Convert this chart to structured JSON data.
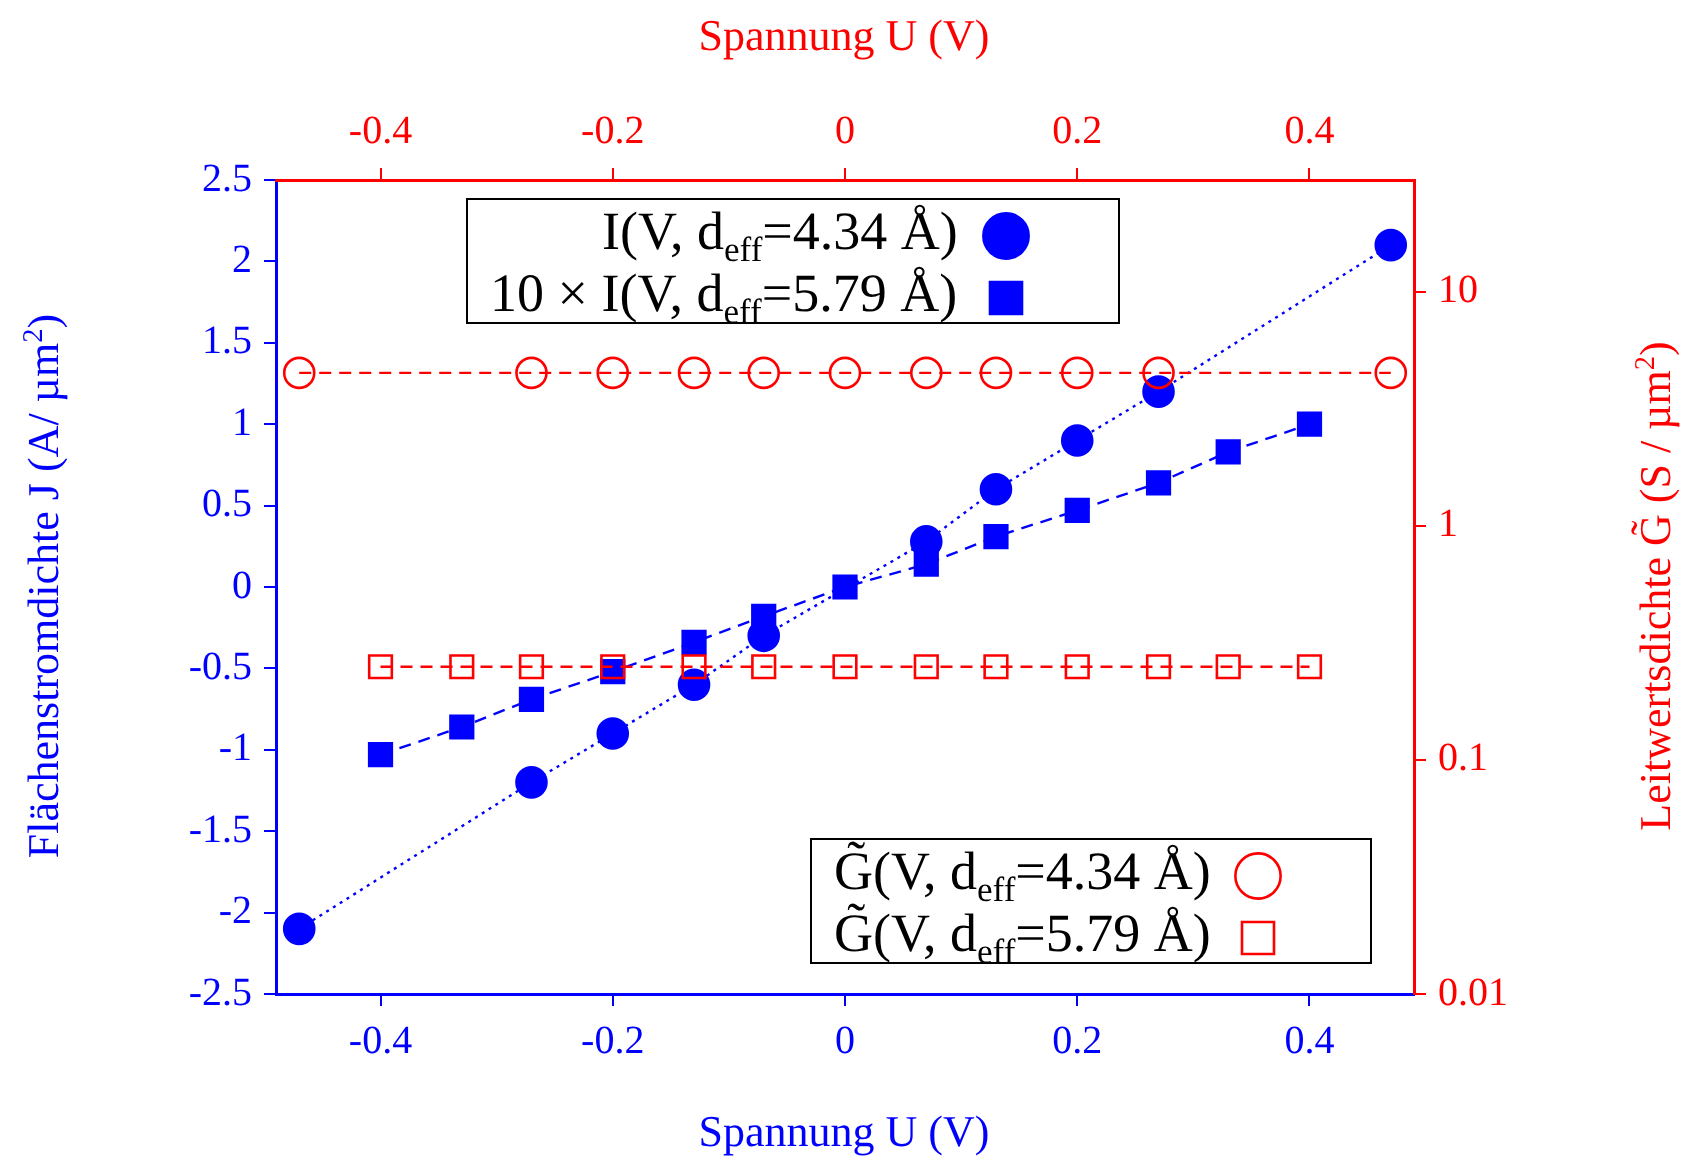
{
  "chart_data": {
    "type": "line",
    "xlabel": "Spannung U (V)",
    "x2label": "Spannung U (V)",
    "ylabel": "Flächenstromdichte J (A/ µm$^{2}$)",
    "y2label": "Leitwertsdichte G̃ (S / µm$^{2}$)",
    "xlim": [
      -0.49,
      0.49
    ],
    "xticks": [
      -0.4,
      -0.2,
      0,
      0.2,
      0.4
    ],
    "x2lim": [
      -0.49,
      0.49
    ],
    "x2ticks": [
      -0.4,
      -0.2,
      0,
      0.2,
      0.4
    ],
    "ylim": [
      -2.5,
      2.5
    ],
    "yticks": [
      -2.5,
      -2,
      -1.5,
      -1,
      -0.5,
      0,
      0.5,
      1,
      1.5,
      2,
      2.5
    ],
    "y2lim": [
      0.01,
      30
    ],
    "y2ticks": [
      0.01,
      0.1,
      1,
      10
    ],
    "log": "y2",
    "legend": "top left",
    "series": [
      {
        "name": "I(V, d$_{eff}$=4.34 Å)",
        "color": "#0000ff",
        "marker": "circle",
        "line_style": "dotted",
        "x": [
          -0.47,
          -0.27,
          -0.2,
          -0.13,
          -0.07,
          0.07,
          0.13,
          0.2,
          0.27,
          0.47
        ],
        "values": [
          -2.1,
          -1.2,
          -0.9,
          -0.6,
          -0.3,
          0.28,
          0.6,
          0.9,
          1.2,
          2.1
        ]
      },
      {
        "name": "10 × I(V, d$_{eff}$=5.79 Å)",
        "color": "#0000ff",
        "marker": "square",
        "line_style": "dashed",
        "x": [
          -0.4,
          -0.33,
          -0.27,
          -0.2,
          -0.13,
          -0.07,
          0,
          0.07,
          0.13,
          0.2,
          0.27,
          0.33,
          0.4
        ],
        "values": [
          -1.03,
          -0.86,
          -0.69,
          -0.52,
          -0.34,
          -0.18,
          0,
          0.14,
          0.31,
          0.47,
          0.64,
          0.83,
          1.0
        ]
      },
      {
        "name": "G̃(V, d$_{eff}$=4.34 Å)",
        "color": "#ff0000",
        "marker": "circle",
        "line_style": "dashed",
        "axis": "y2",
        "x": [
          -0.47,
          -0.27,
          -0.2,
          -0.13,
          -0.07,
          0,
          0.07,
          0.13,
          0.2,
          0.27,
          0.47
        ],
        "values": [
          4.5,
          4.5,
          4.5,
          4.5,
          4.5,
          4.5,
          4.5,
          4.5,
          4.5,
          4.5,
          4.5
        ]
      },
      {
        "name": "G̃(V, d$_{eff}$=5.79 Å)",
        "color": "#ff0000",
        "marker": "square",
        "line_style": "dashed",
        "axis": "y2",
        "x": [
          -0.4,
          -0.33,
          -0.27,
          -0.2,
          -0.13,
          -0.07,
          0,
          0.07,
          0.13,
          0.2,
          0.27,
          0.33,
          0.4
        ],
        "values": [
          0.25,
          0.25,
          0.25,
          0.25,
          0.25,
          0.25,
          0.25,
          0.25,
          0.25,
          0.25,
          0.25,
          0.25,
          0.25
        ]
      }
    ]
  }
}
